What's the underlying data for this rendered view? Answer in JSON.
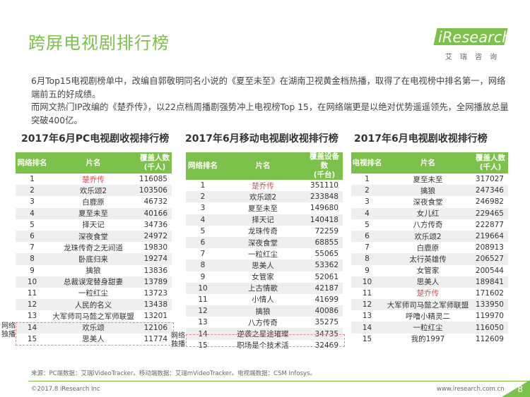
{
  "title": "跨屏电视剧排行榜",
  "logo": {
    "word": "iResearch",
    "sub": "艾瑞咨询"
  },
  "intro": {
    "p1": "6月Top15电视剧榜单中，改编自郭敬明同名小说的《夏至未至》在湖南卫视黄金档热播，取得了在电视榜中排名第一，网络端前五的好成绩。",
    "p2": "而网文热门IP改编的《楚乔传》，以22点档周播剧强势冲上电视榜Top 15，在网络端更是以绝对优势遥遥领先，全网播放总量突破400亿。"
  },
  "pc": {
    "title": "2017年6月PC电视剧收视排行榜",
    "headers": [
      "网络排名",
      "片名",
      "覆盖人数\n(千人)"
    ],
    "rows": [
      [
        "1",
        "楚乔传",
        "116085"
      ],
      [
        "2",
        "欢乐颂2",
        "103506"
      ],
      [
        "3",
        "白鹿原",
        "46732"
      ],
      [
        "4",
        "夏至未至",
        "40166"
      ],
      [
        "5",
        "择天记",
        "34736"
      ],
      [
        "6",
        "深夜食堂",
        "24972"
      ],
      [
        "7",
        "龙珠传奇之无间道",
        "19830"
      ],
      [
        "8",
        "卧底归来",
        "19274"
      ],
      [
        "9",
        "擒狼",
        "13836"
      ],
      [
        "10",
        "总裁误宠替身甜妻",
        "13789"
      ],
      [
        "11",
        "一粒红尘",
        "13723"
      ],
      [
        "12",
        "人民的名义",
        "13438"
      ],
      [
        "13",
        "大军师司马懿之军师联盟",
        "13201"
      ],
      [
        "14",
        "欢乐颂",
        "12106"
      ],
      [
        "15",
        "思美人",
        "11774"
      ]
    ],
    "side_label": "网络\n独播"
  },
  "mobile": {
    "title": "2017年6月移动电视剧收视排行榜",
    "headers": [
      "网络排名",
      "片名",
      "覆盖设备数\n(千台)"
    ],
    "rows": [
      [
        "1",
        "楚乔传",
        "351110"
      ],
      [
        "2",
        "欢乐颂2",
        "233848"
      ],
      [
        "3",
        "夏至未至",
        "149680"
      ],
      [
        "4",
        "择天记",
        "140418"
      ],
      [
        "5",
        "龙珠传奇",
        "72259"
      ],
      [
        "6",
        "深夜食堂",
        "68855"
      ],
      [
        "7",
        "一粒红尘",
        "55065"
      ],
      [
        "8",
        "思美人",
        "53362"
      ],
      [
        "9",
        "女管家",
        "52061"
      ],
      [
        "10",
        "上古情歌",
        "42187"
      ],
      [
        "11",
        "小情人",
        "41699"
      ],
      [
        "12",
        "擒狼",
        "40086"
      ],
      [
        "13",
        "八方传奇",
        "35275"
      ],
      [
        "14",
        "逆袭之星途璀璨",
        "34735"
      ],
      [
        "15",
        "职场是个技术活",
        "32469"
      ]
    ],
    "side_label": "网络\n独播"
  },
  "tv": {
    "title": "2017年6月电视剧收视排行榜",
    "headers": [
      "电视排名",
      "片名",
      "覆盖人数\n(千人)"
    ],
    "rows": [
      [
        "1",
        "夏至未至",
        "317027"
      ],
      [
        "2",
        "擒狼",
        "247346"
      ],
      [
        "3",
        "深夜食堂",
        "246982"
      ],
      [
        "4",
        "女儿红",
        "229465"
      ],
      [
        "5",
        "八方传奇",
        "222877"
      ],
      [
        "6",
        "欢乐颂2",
        "219664"
      ],
      [
        "7",
        "白鹿原",
        "208913"
      ],
      [
        "8",
        "太行英雄传",
        "206527"
      ],
      [
        "9",
        "女管家",
        "200544"
      ],
      [
        "10",
        "思美人",
        "189841"
      ],
      [
        "11",
        "楚乔传",
        "171602"
      ],
      [
        "12",
        "大军师司马懿之军师联盟",
        "133950"
      ],
      [
        "13",
        "呼噜小精灵二",
        "119970"
      ],
      [
        "14",
        "一粒红尘",
        "116050"
      ],
      [
        "15",
        "我的1997",
        "112609"
      ]
    ]
  },
  "source": "来源：PC端数据：艾瑞iVideoTracker。移动端数据：艾瑞mVideoTracker。电视端数据：CSM Infosys。",
  "copyright": "©2017.8 iResearch Inc",
  "site": "www.iresearch.com.cn",
  "page_number": "8",
  "colors": {
    "accent": "#7cc24a",
    "highlight": "#e64b4b",
    "zebra": "#efefef",
    "dashed_box": "#ee8888"
  }
}
